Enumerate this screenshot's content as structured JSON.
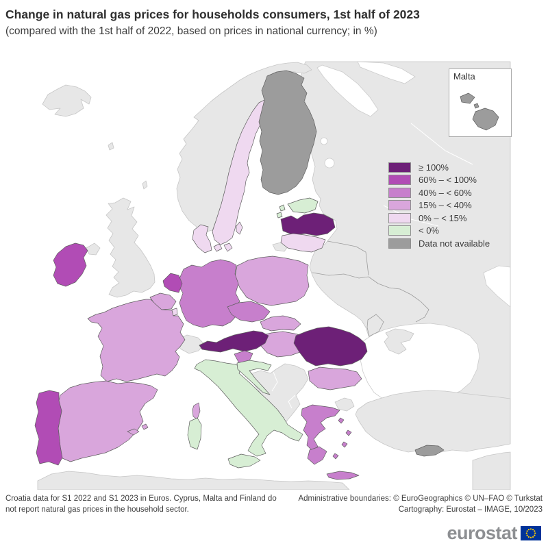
{
  "header": {
    "title": "Change in natural gas prices for households consumers, 1st half of 2023",
    "subtitle": "(compared with the 1st half of 2022, based on prices in national currency; in %)"
  },
  "inset": {
    "label": "Malta"
  },
  "legend": {
    "items": [
      {
        "id": "ge100",
        "label": "≥ 100%",
        "color": "#6d2077"
      },
      {
        "id": "c60_100",
        "label": "60% – < 100%",
        "color": "#b14cb5"
      },
      {
        "id": "c40_60",
        "label": "40% – < 60%",
        "color": "#c77fcc"
      },
      {
        "id": "c15_40",
        "label": "15% – < 40%",
        "color": "#d9a6dc"
      },
      {
        "id": "c0_15",
        "label": "0% – < 15%",
        "color": "#efd9f0"
      },
      {
        "id": "lt0",
        "label": "< 0%",
        "color": "#d7eed4"
      },
      {
        "id": "nodata",
        "label": "Data not available",
        "color": "#9c9c9c"
      }
    ],
    "map_colors": {
      "non_eu": "#e7e7e7",
      "sea": "#ffffff",
      "eu_border": "#5f5f5f",
      "non_eu_border": "#c6c6c6",
      "sea_border": "#cccccc"
    }
  },
  "chart_data": {
    "type": "choropleth_map",
    "title": "Change in natural gas prices for households consumers, 1st half of 2023",
    "unit": "% change vs 1st half of 2022, national currency",
    "classes": [
      "≥ 100%",
      "60% – < 100%",
      "40% – < 60%",
      "15% – < 40%",
      "0% – < 15%",
      "< 0%",
      "Data not available"
    ],
    "countries": [
      {
        "code": "AT",
        "name": "Austria",
        "class_id": "ge100",
        "class_label": "≥ 100%"
      },
      {
        "code": "LV",
        "name": "Latvia",
        "class_id": "ge100",
        "class_label": "≥ 100%"
      },
      {
        "code": "RO",
        "name": "Romania",
        "class_id": "ge100",
        "class_label": "≥ 100%"
      },
      {
        "code": "IE",
        "name": "Ireland",
        "class_id": "c60_100",
        "class_label": "60% – < 100%"
      },
      {
        "code": "NL",
        "name": "Netherlands",
        "class_id": "c60_100",
        "class_label": "60% – < 100%"
      },
      {
        "code": "PT",
        "name": "Portugal",
        "class_id": "c60_100",
        "class_label": "60% – < 100%"
      },
      {
        "code": "CZ",
        "name": "Czechia",
        "class_id": "c40_60",
        "class_label": "40% – < 60%"
      },
      {
        "code": "DE",
        "name": "Germany",
        "class_id": "c40_60",
        "class_label": "40% – < 60%"
      },
      {
        "code": "EL",
        "name": "Greece",
        "class_id": "c40_60",
        "class_label": "40% – < 60%"
      },
      {
        "code": "SI",
        "name": "Slovenia",
        "class_id": "c40_60",
        "class_label": "40% – < 60%"
      },
      {
        "code": "BE",
        "name": "Belgium",
        "class_id": "c15_40",
        "class_label": "15% – < 40%"
      },
      {
        "code": "BG",
        "name": "Bulgaria",
        "class_id": "c15_40",
        "class_label": "15% – < 40%"
      },
      {
        "code": "ES",
        "name": "Spain",
        "class_id": "c15_40",
        "class_label": "15% – < 40%"
      },
      {
        "code": "FR",
        "name": "France",
        "class_id": "c15_40",
        "class_label": "15% – < 40%"
      },
      {
        "code": "HU",
        "name": "Hungary",
        "class_id": "c15_40",
        "class_label": "15% – < 40%"
      },
      {
        "code": "PL",
        "name": "Poland",
        "class_id": "c15_40",
        "class_label": "15% – < 40%"
      },
      {
        "code": "SK",
        "name": "Slovakia",
        "class_id": "c15_40",
        "class_label": "15% – < 40%"
      },
      {
        "code": "DK",
        "name": "Denmark",
        "class_id": "c0_15",
        "class_label": "0% – < 15%"
      },
      {
        "code": "LT",
        "name": "Lithuania",
        "class_id": "c0_15",
        "class_label": "0% – < 15%"
      },
      {
        "code": "LU",
        "name": "Luxembourg",
        "class_id": "c0_15",
        "class_label": "0% – < 15%"
      },
      {
        "code": "SE",
        "name": "Sweden",
        "class_id": "c0_15",
        "class_label": "0% – < 15%"
      },
      {
        "code": "EE",
        "name": "Estonia",
        "class_id": "lt0",
        "class_label": "< 0%"
      },
      {
        "code": "HR",
        "name": "Croatia",
        "class_id": "lt0",
        "class_label": "< 0%"
      },
      {
        "code": "IT",
        "name": "Italy",
        "class_id": "lt0",
        "class_label": "< 0%"
      },
      {
        "code": "CY",
        "name": "Cyprus",
        "class_id": "nodata",
        "class_label": "Data not available"
      },
      {
        "code": "FI",
        "name": "Finland",
        "class_id": "nodata",
        "class_label": "Data not available"
      },
      {
        "code": "MT",
        "name": "Malta",
        "class_id": "nodata",
        "class_label": "Data not available"
      }
    ]
  },
  "footnotes": {
    "left1": "Croatia data for S1 2022 and S1 2023 in Euros. Cyprus, Malta and Finland do",
    "left2": "not report natural gas prices in the household sector.",
    "right1": "Administrative boundaries: © EuroGeographics © UN–FAO © Turkstat",
    "right2": "Cartography: Eurostat – IMAGE, 10/2023"
  },
  "logo": {
    "text": "eurostat",
    "flag_blue": "#003399",
    "star_yellow": "#ffcc00"
  }
}
